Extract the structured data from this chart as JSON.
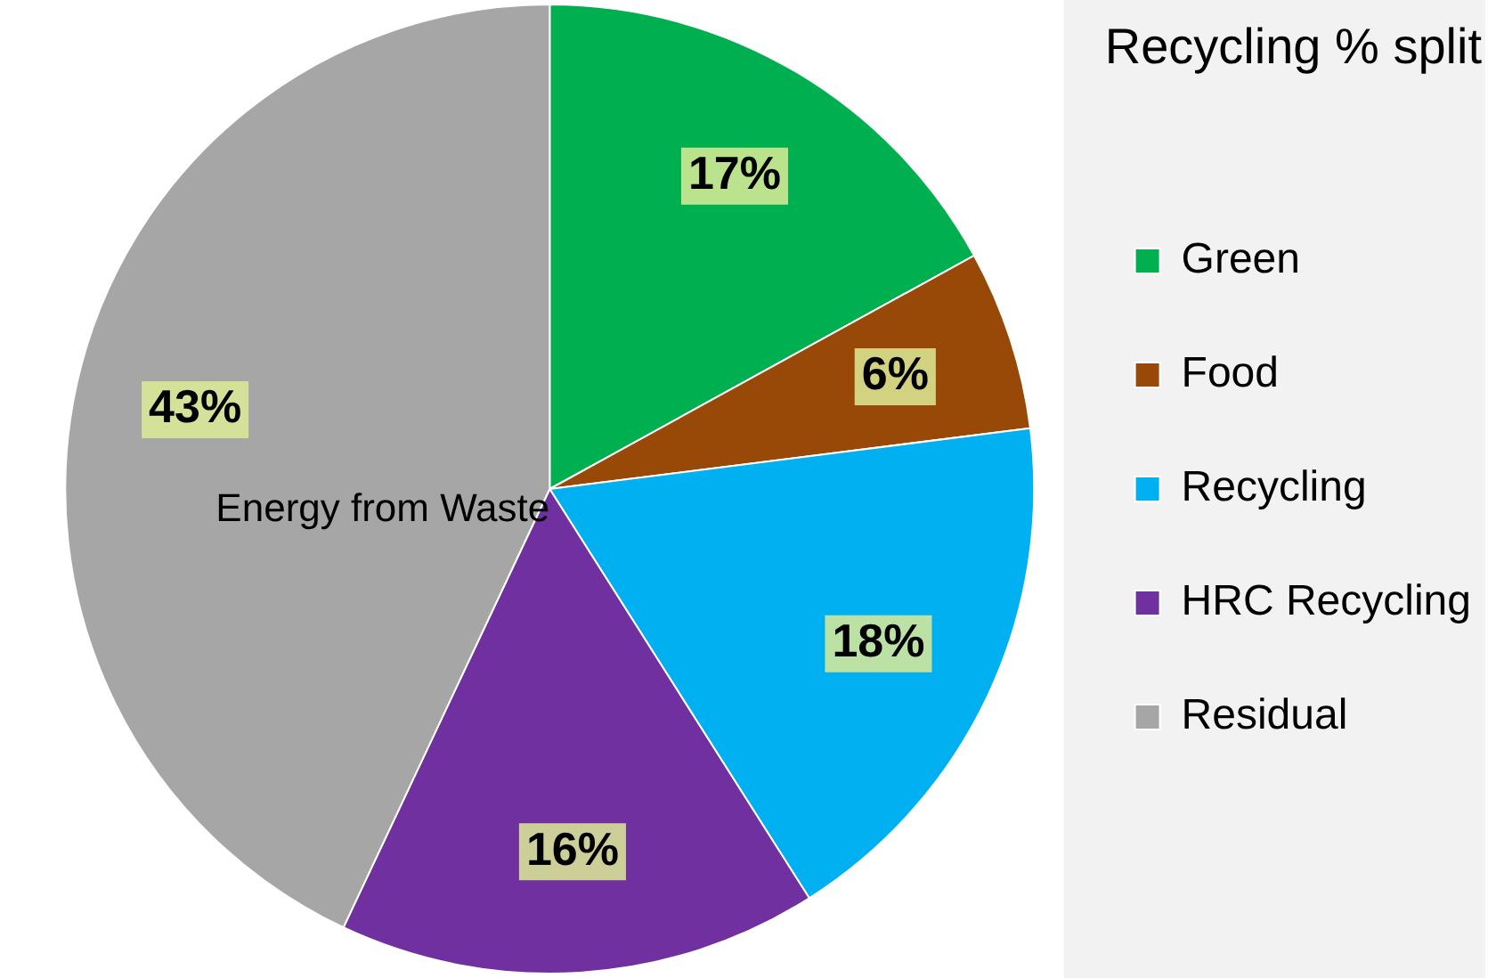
{
  "chart_data": {
    "type": "pie",
    "title": "Recycling % split",
    "categories": [
      "Green",
      "Food",
      "Recycling",
      "HRC Recycling",
      "Residual"
    ],
    "values": [
      17,
      6,
      18,
      16,
      43
    ],
    "colors": [
      "#00b050",
      "#984807",
      "#00b0f0",
      "#7030a0",
      "#a6a6a6"
    ],
    "value_labels": [
      "17%",
      "6%",
      "18%",
      "16%",
      "43%"
    ],
    "annotations": [
      "Energy from Waste"
    ],
    "legend": "right"
  }
}
